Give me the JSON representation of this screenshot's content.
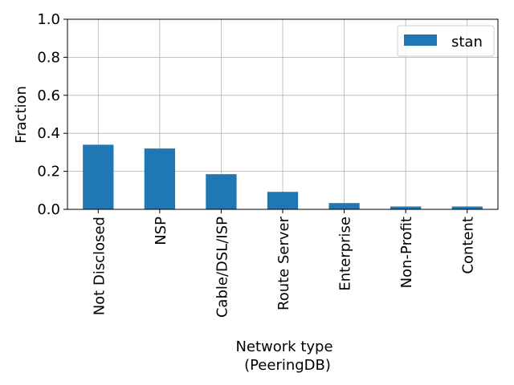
{
  "chart_data": {
    "type": "bar",
    "categories": [
      "Not Disclosed",
      "NSP",
      "Cable/DSL/ISP",
      "Route Server",
      "Enterprise",
      "Non-Profit",
      "Content"
    ],
    "series": [
      {
        "name": "stan",
        "values": [
          0.34,
          0.32,
          0.185,
          0.092,
          0.033,
          0.015,
          0.015
        ],
        "color": "#1f77b4"
      }
    ],
    "ylabel": "Fraction",
    "xlabel_lines": [
      "Network type",
      "(PeeringDB)"
    ],
    "ylim": [
      0,
      1.0
    ],
    "yticks": [
      "0.0",
      "0.2",
      "0.4",
      "0.6",
      "0.8",
      "1.0"
    ],
    "grid": true,
    "legend_position": "top-right"
  }
}
